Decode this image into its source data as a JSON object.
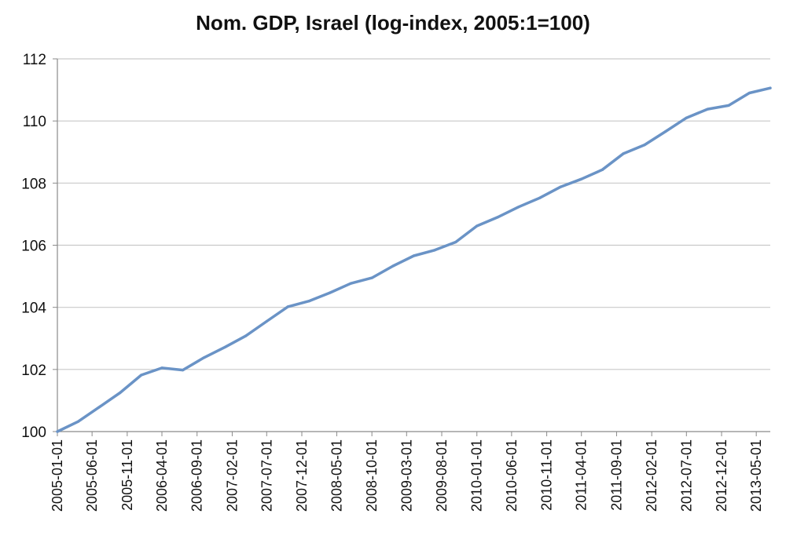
{
  "chart_data": {
    "type": "line",
    "title": "Nom. GDP, Israel (log-index, 2005:1=100)",
    "xlabel": "",
    "ylabel": "",
    "ylim": [
      100,
      112
    ],
    "yticks": [
      "100",
      "102",
      "104",
      "106",
      "108",
      "110",
      "112"
    ],
    "xtick_labels": [
      "2005-01-01",
      "2005-06-01",
      "2005-11-01",
      "2006-04-01",
      "2006-09-01",
      "2007-02-01",
      "2007-07-01",
      "2007-12-01",
      "2008-05-01",
      "2008-10-01",
      "2009-03-01",
      "2009-08-01",
      "2010-01-01",
      "2010-06-01",
      "2010-11-01",
      "2011-04-01",
      "2011-09-01",
      "2012-02-01",
      "2012-07-01",
      "2012-12-01",
      "2013-05-01"
    ],
    "grid": true,
    "series_color": "#6a93c6",
    "series": [
      {
        "x": [
          "2005-01-01",
          "2005-04-01",
          "2005-07-01",
          "2005-10-01",
          "2006-01-01",
          "2006-04-01",
          "2006-07-01",
          "2006-10-01",
          "2007-01-01",
          "2007-04-01",
          "2007-07-01",
          "2007-10-01",
          "2008-01-01",
          "2008-04-01",
          "2008-07-01",
          "2008-10-01",
          "2009-01-01",
          "2009-04-01",
          "2009-07-01",
          "2009-10-01",
          "2010-01-01",
          "2010-04-01",
          "2010-07-01",
          "2010-10-01",
          "2011-01-01",
          "2011-04-01",
          "2011-07-01",
          "2011-10-01",
          "2012-01-01",
          "2012-04-01",
          "2012-07-01",
          "2012-10-01",
          "2013-01-01",
          "2013-04-01",
          "2013-07-01"
        ],
        "values": [
          100.0,
          100.32,
          100.78,
          101.25,
          101.82,
          102.05,
          101.98,
          102.38,
          102.72,
          103.08,
          103.55,
          104.02,
          104.2,
          104.47,
          104.77,
          104.95,
          105.33,
          105.66,
          105.84,
          106.1,
          106.62,
          106.9,
          107.23,
          107.52,
          107.88,
          108.13,
          108.43,
          108.95,
          109.23,
          109.66,
          110.1,
          110.38,
          110.5,
          110.9,
          111.06
        ]
      }
    ]
  }
}
